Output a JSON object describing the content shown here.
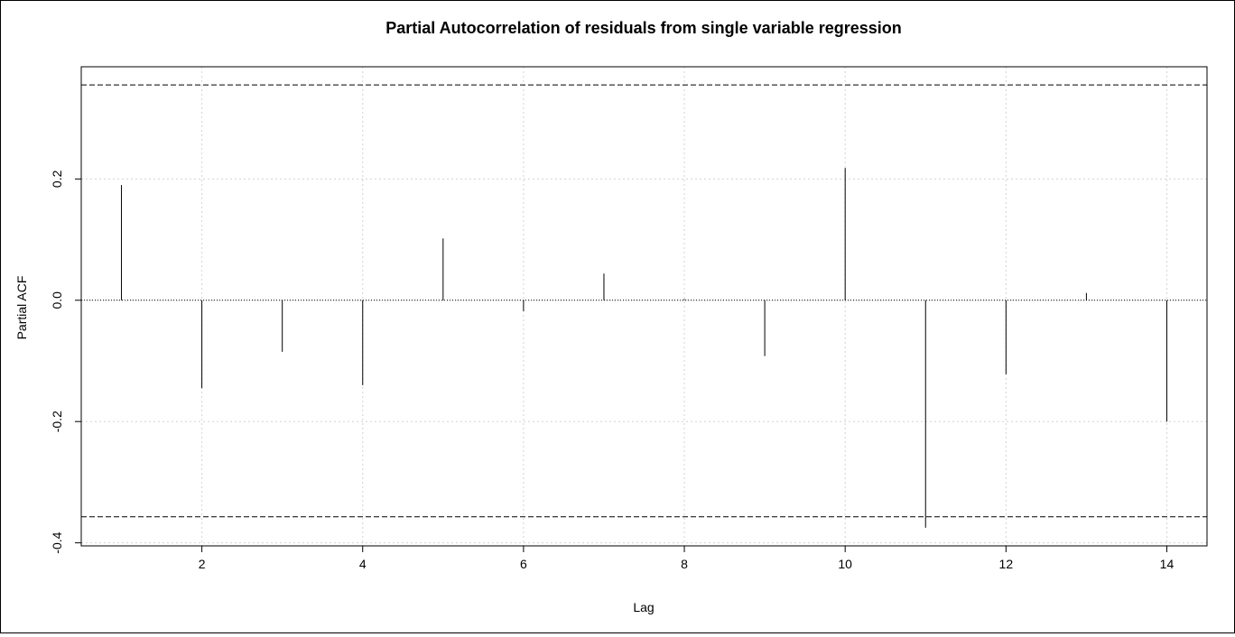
{
  "chart_data": {
    "type": "bar",
    "title": "Partial Autocorrelation of residuals from single variable regression",
    "xlabel": "Lag",
    "ylabel": "Partial ACF",
    "xlim": [
      0.5,
      14.5
    ],
    "ylim": [
      -0.4,
      0.36
    ],
    "x_ticks": [
      2,
      4,
      6,
      8,
      10,
      12,
      14
    ],
    "x_tick_labels": [
      "2",
      "4",
      "6",
      "8",
      "10",
      "12",
      "14"
    ],
    "y_ticks": [
      -0.4,
      -0.2,
      0.0,
      0.2
    ],
    "y_tick_labels": [
      "-0.4",
      "-0.2",
      "0.0",
      "0.2"
    ],
    "grid": true,
    "confidence_bounds": [
      0.355,
      -0.357
    ],
    "x": [
      1,
      2,
      3,
      4,
      5,
      6,
      7,
      8,
      9,
      10,
      11,
      12,
      13,
      14
    ],
    "values": [
      0.19,
      -0.145,
      -0.085,
      -0.14,
      0.102,
      -0.018,
      0.044,
      0.002,
      -0.092,
      0.218,
      -0.375,
      -0.122,
      0.012,
      -0.2
    ]
  }
}
